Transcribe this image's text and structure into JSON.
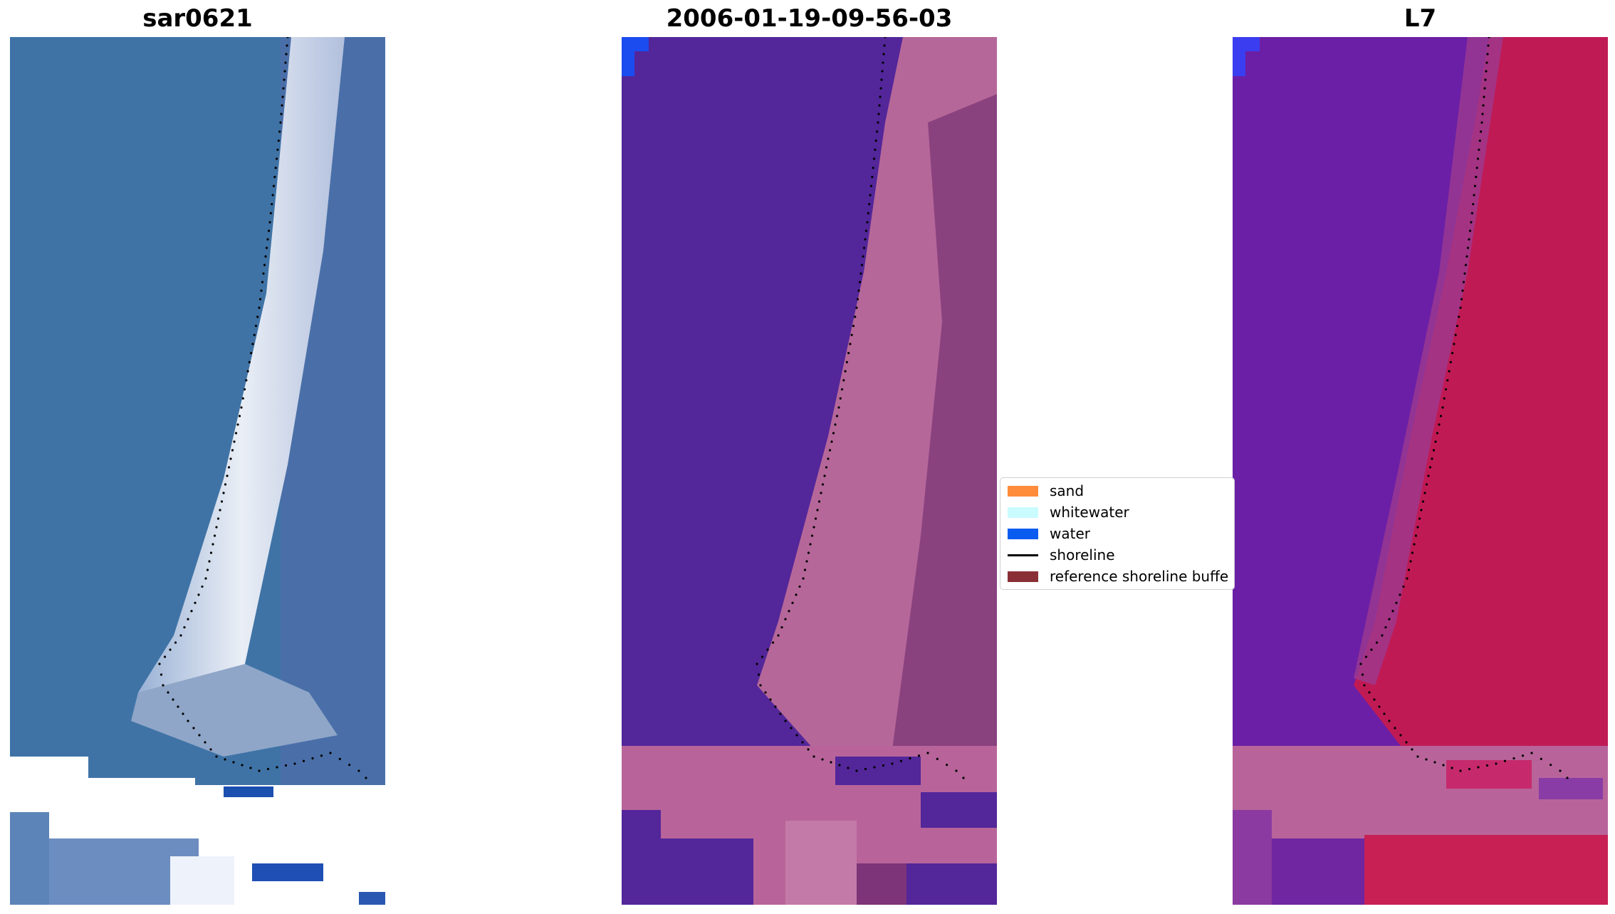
{
  "panels": [
    {
      "title": "sar0621"
    },
    {
      "title": "2006-01-19-09-56-03"
    },
    {
      "title": "L7"
    }
  ],
  "legend": {
    "items": [
      {
        "label": "sand",
        "color": "#ff8c3a",
        "kind": "patch"
      },
      {
        "label": "whitewater",
        "color": "#c9fbff",
        "kind": "patch"
      },
      {
        "label": "water",
        "color": "#0a5cf0",
        "kind": "patch"
      },
      {
        "label": "shoreline",
        "color": "#000000",
        "kind": "line"
      },
      {
        "label": "reference shoreline buffe",
        "color": "#8b2f36",
        "kind": "patch"
      }
    ]
  },
  "colors": {
    "ocean_rgb": "#3d72a8",
    "beach_rgb": "#e8ecf5",
    "class_water": "#53269a",
    "class_land": "#b76499",
    "false_color_water": "#6a1fa3",
    "false_color_land": "#c01a50",
    "shoreline_dots": "#000000"
  }
}
